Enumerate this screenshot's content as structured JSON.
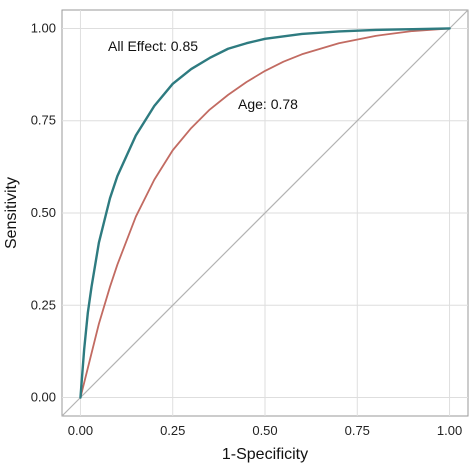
{
  "chart_data": {
    "type": "line",
    "title": "",
    "xlabel": "1-Specificity",
    "ylabel": "Sensitivity",
    "xlim": [
      -0.05,
      1.05
    ],
    "ylim": [
      -0.05,
      1.05
    ],
    "xticks": [
      "0.00",
      "0.25",
      "0.50",
      "0.75",
      "1.00"
    ],
    "yticks": [
      "0.00",
      "0.25",
      "0.50",
      "0.75",
      "1.00"
    ],
    "grid": true,
    "legend": "none",
    "reference_line": {
      "x": [
        0,
        1
      ],
      "y": [
        0,
        1
      ],
      "color": "#b3b3b3"
    },
    "series": [
      {
        "annotation": "All Effect: 0.85",
        "color": "#2e7b80",
        "x": [
          0,
          0.01,
          0.02,
          0.03,
          0.05,
          0.08,
          0.1,
          0.15,
          0.2,
          0.25,
          0.3,
          0.35,
          0.4,
          0.45,
          0.5,
          0.6,
          0.7,
          0.8,
          0.9,
          1.0
        ],
        "y": [
          0,
          0.13,
          0.23,
          0.3,
          0.42,
          0.54,
          0.6,
          0.71,
          0.79,
          0.85,
          0.89,
          0.92,
          0.945,
          0.96,
          0.972,
          0.985,
          0.992,
          0.996,
          0.998,
          1.0
        ]
      },
      {
        "annotation": "Age: 0.78",
        "color": "#c26b62",
        "x": [
          0,
          0.02,
          0.05,
          0.08,
          0.1,
          0.15,
          0.2,
          0.25,
          0.3,
          0.35,
          0.4,
          0.45,
          0.5,
          0.55,
          0.6,
          0.7,
          0.8,
          0.9,
          1.0
        ],
        "y": [
          0,
          0.08,
          0.2,
          0.3,
          0.36,
          0.49,
          0.59,
          0.67,
          0.73,
          0.78,
          0.82,
          0.855,
          0.885,
          0.91,
          0.93,
          0.96,
          0.98,
          0.993,
          1.0
        ]
      }
    ]
  }
}
